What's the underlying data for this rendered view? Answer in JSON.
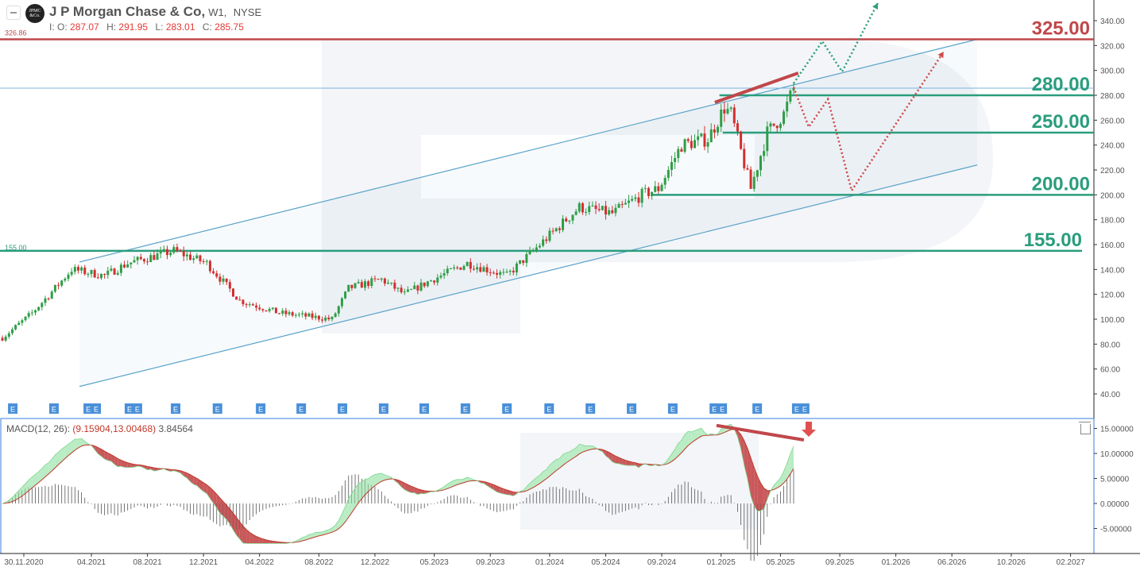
{
  "header": {
    "logo_text": "JPMC &Co.",
    "title": "J P Morgan Chase & Co,",
    "interval": "W1,",
    "exchange": "NYSE",
    "o_label": "I: O:",
    "open": "287.07",
    "h_label": "H:",
    "high": "291.95",
    "l_label": "L:",
    "low": "283.01",
    "c_label": "C:",
    "close": "285.75"
  },
  "macd_label": {
    "name": "MACD(12, 26):",
    "values": "(9.15904,13.00468)",
    "hist": "3.84564"
  },
  "colors": {
    "up": "#2e9e46",
    "down": "#d32f2f",
    "level_green": "#2a9d7c",
    "level_red": "#c0474a",
    "channel": "#5ba3c9",
    "price_line": "#7ab3dd",
    "macd_up_fill": "#b9ecc4",
    "macd_down_fill": "#c9585a"
  },
  "chart_data": {
    "type": "candlestick",
    "symbol": "J P Morgan Chase & Co",
    "interval": "W1",
    "x_unit": "weeks since first candle",
    "close_waypoints": [
      [
        0,
        85
      ],
      [
        9,
        105
      ],
      [
        16,
        125
      ],
      [
        21,
        140
      ],
      [
        31,
        135
      ],
      [
        38,
        145
      ],
      [
        52,
        155
      ],
      [
        62,
        145
      ],
      [
        72,
        115
      ],
      [
        84,
        105
      ],
      [
        100,
        100
      ],
      [
        105,
        125
      ],
      [
        115,
        132
      ],
      [
        122,
        120
      ],
      [
        129,
        130
      ],
      [
        141,
        145
      ],
      [
        153,
        135
      ],
      [
        163,
        160
      ],
      [
        175,
        190
      ],
      [
        185,
        185
      ],
      [
        194,
        200
      ],
      [
        199,
        205
      ],
      [
        206,
        240
      ],
      [
        214,
        245
      ],
      [
        219,
        270
      ],
      [
        221,
        265
      ],
      [
        227,
        205
      ],
      [
        232,
        250
      ],
      [
        237,
        265
      ],
      [
        240,
        285.75
      ]
    ],
    "y_axis": {
      "min": 40,
      "max": 340,
      "ticks": [
        "340.00",
        "320.00",
        "300.00",
        "280.00",
        "260.00",
        "240.00",
        "220.00",
        "200.00",
        "180.00",
        "160.00",
        "140.00",
        "120.00",
        "100.00",
        "80.00",
        "60.00",
        "40.00"
      ]
    },
    "x_ticks": [
      {
        "label": "30.11.2020",
        "week": 6.5
      },
      {
        "label": "04.2021",
        "week": 27
      },
      {
        "label": "08.2021",
        "week": 44
      },
      {
        "label": "12.2021",
        "week": 61
      },
      {
        "label": "04.2022",
        "week": 78
      },
      {
        "label": "08.2022",
        "week": 96
      },
      {
        "label": "12.2022",
        "week": 113
      },
      {
        "label": "05.2023",
        "week": 131
      },
      {
        "label": "09.2023",
        "week": 148
      },
      {
        "label": "01.2024",
        "week": 166
      },
      {
        "label": "05.2024",
        "week": 183
      },
      {
        "label": "09.2024",
        "week": 200
      },
      {
        "label": "01.2025",
        "week": 218
      },
      {
        "label": "05.2025",
        "week": 236
      },
      {
        "label": "09.2025",
        "week": 254
      },
      {
        "label": "01.2026",
        "week": 271
      },
      {
        "label": "06.2026",
        "week": 288
      },
      {
        "label": "10.2026",
        "week": 306
      },
      {
        "label": "02.2027",
        "week": 324
      }
    ],
    "current_price": {
      "value": 285.75,
      "label": "285.75"
    },
    "levels": [
      {
        "value": 325,
        "label": "325.00",
        "color": "red",
        "from_week": -1
      },
      {
        "value": 280,
        "label": "280.00",
        "color": "green",
        "from_week": 217.5
      },
      {
        "value": 250,
        "label": "250.00",
        "color": "green",
        "from_week": 218.5
      },
      {
        "value": 200,
        "label": "200.00",
        "color": "green",
        "from_week": 197
      },
      {
        "value": 155,
        "label": "155.00",
        "color": "green",
        "from_week": -1
      }
    ],
    "left_labels": [
      {
        "value": 326.86,
        "label": "326.86",
        "color": "red"
      },
      {
        "value": 155,
        "label": "155.00",
        "color": "green"
      }
    ],
    "channel": {
      "upper": [
        [
          23.4,
          146
        ],
        [
          295.7,
          325
        ]
      ],
      "lower": [
        [
          23.4,
          46
        ],
        [
          295.7,
          224
        ]
      ]
    },
    "divergence_price": [
      [
        216.1,
        274.3
      ],
      [
        241.4,
        297.9
      ]
    ],
    "forecast_bullish": [
      [
        240,
        289.6
      ],
      [
        248.7,
        323.4
      ],
      [
        254.7,
        299
      ],
      [
        265.5,
        354
      ]
    ],
    "forecast_bearish": [
      [
        240,
        286.4
      ],
      [
        244.6,
        254.5
      ],
      [
        250.4,
        276.8
      ],
      [
        257.6,
        203.4
      ],
      [
        285.5,
        315
      ]
    ],
    "earnings_marker_label": "E",
    "earnings_weeks": [
      1.7,
      14.2,
      24.6,
      27,
      37.1,
      39.5,
      51.1,
      63.8,
      76.9,
      89.2,
      101.7,
      114.2,
      126.5,
      139,
      151.6,
      164.4,
      176.9,
      189.4,
      201.9,
      214.5,
      216.9,
      227.5,
      239.5,
      241.9
    ],
    "macd": {
      "fast": 12,
      "slow": 26,
      "y_ticks": [
        "15.00000",
        "10.00000",
        "5.00000",
        "0.00000",
        "-5.00000"
      ],
      "tick_values": [
        15,
        10,
        5,
        0,
        -5
      ],
      "divergence": [
        [
          216.6,
          15.6
        ],
        [
          243.1,
          12.7
        ]
      ]
    }
  }
}
